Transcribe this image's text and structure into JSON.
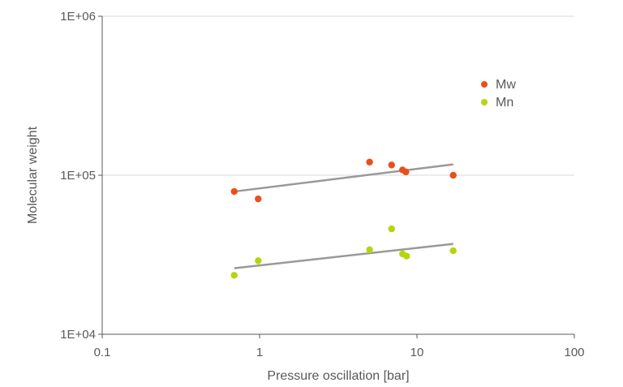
{
  "chart_data": {
    "type": "scatter",
    "title": "",
    "xlabel": "Pressure oscillation [bar]",
    "ylabel": "Molecular weight",
    "x_scale": "log",
    "y_scale": "log",
    "xlim": [
      0.1,
      100
    ],
    "ylim": [
      10000,
      1000000
    ],
    "x_ticks": [
      {
        "value": 0.1,
        "label": "0.1"
      },
      {
        "value": 1,
        "label": "1"
      },
      {
        "value": 10,
        "label": "10"
      },
      {
        "value": 100,
        "label": "100"
      }
    ],
    "y_ticks": [
      {
        "value": 10000,
        "label": "1E+04"
      },
      {
        "value": 100000,
        "label": "1E+05"
      },
      {
        "value": 1000000,
        "label": "1E+06"
      }
    ],
    "grid": {
      "horizontal": true,
      "vertical": false
    },
    "legend_position": "top-right",
    "series": [
      {
        "name": "Mw",
        "color": "#E8501A",
        "x": [
          0.69,
          0.98,
          5.0,
          6.9,
          8.1,
          8.5,
          17.0
        ],
        "y": [
          79000,
          71000,
          121000,
          116000,
          108000,
          105000,
          100000
        ],
        "trendline": {
          "x": [
            0.69,
            17.0
          ],
          "y": [
            79000,
            117000
          ],
          "color": "#999999"
        }
      },
      {
        "name": "Mn",
        "color": "#B8D40F",
        "x": [
          0.69,
          0.98,
          5.0,
          6.9,
          8.1,
          8.6,
          17.0
        ],
        "y": [
          23500,
          29000,
          34000,
          46000,
          32000,
          31000,
          33500
        ],
        "trendline": {
          "x": [
            0.69,
            17.0
          ],
          "y": [
            26000,
            37000
          ],
          "color": "#999999"
        }
      }
    ]
  }
}
